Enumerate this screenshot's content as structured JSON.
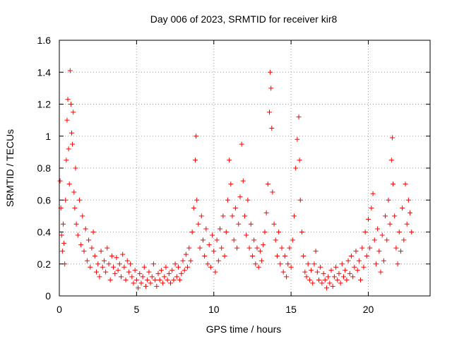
{
  "chart_data": {
    "type": "scatter",
    "title": "Day 006 of 2023, SRMTID for receiver kir8",
    "xlabel": "GPS time / hours",
    "ylabel": "SRMTID / TECUs",
    "xlim": [
      0,
      24
    ],
    "ylim": [
      0,
      1.6
    ],
    "xticks": [
      0,
      5,
      10,
      15,
      20
    ],
    "xtick_labels": [
      "0",
      "5",
      "10",
      "15",
      "20"
    ],
    "yticks": [
      0,
      0.2,
      0.4,
      0.6,
      0.8,
      1.0,
      1.2,
      1.4,
      1.6
    ],
    "ytick_labels": [
      "0",
      "0.2",
      "0.4",
      "0.6",
      "0.8",
      "1",
      "1.2",
      "1.4",
      "1.6"
    ],
    "grid": true,
    "marker": "plus",
    "series": [
      {
        "name": "SRMTID",
        "color": "#ff0000",
        "points": [
          [
            0.05,
            0.72
          ],
          [
            0.1,
            0.55
          ],
          [
            0.15,
            0.38
          ],
          [
            0.2,
            0.28
          ],
          [
            0.25,
            0.45
          ],
          [
            0.3,
            0.33
          ],
          [
            0.35,
            0.2
          ],
          [
            0.4,
            0.6
          ],
          [
            0.45,
            0.85
          ],
          [
            0.5,
            1.1
          ],
          [
            0.55,
            1.23
          ],
          [
            0.6,
            0.92
          ],
          [
            0.65,
            0.7
          ],
          [
            0.7,
            1.41
          ],
          [
            0.75,
            1.2
          ],
          [
            0.8,
            1.02
          ],
          [
            0.85,
            0.95
          ],
          [
            0.9,
            1.15
          ],
          [
            0.95,
            0.65
          ],
          [
            1.0,
            0.55
          ],
          [
            1.05,
            0.8
          ],
          [
            1.1,
            0.45
          ],
          [
            1.2,
            0.38
          ],
          [
            1.3,
            0.6
          ],
          [
            1.4,
            0.32
          ],
          [
            1.5,
            0.5
          ],
          [
            1.6,
            0.28
          ],
          [
            1.7,
            0.42
          ],
          [
            1.8,
            0.22
          ],
          [
            1.9,
            0.35
          ],
          [
            2.0,
            0.18
          ],
          [
            2.1,
            0.3
          ],
          [
            2.2,
            0.4
          ],
          [
            2.3,
            0.25
          ],
          [
            2.4,
            0.15
          ],
          [
            2.5,
            0.2
          ],
          [
            2.6,
            0.12
          ],
          [
            2.7,
            0.28
          ],
          [
            2.8,
            0.18
          ],
          [
            2.9,
            0.22
          ],
          [
            3.0,
            0.15
          ],
          [
            3.1,
            0.3
          ],
          [
            3.2,
            0.2
          ],
          [
            3.3,
            0.1
          ],
          [
            3.4,
            0.25
          ],
          [
            3.5,
            0.18
          ],
          [
            3.6,
            0.14
          ],
          [
            3.7,
            0.24
          ],
          [
            3.8,
            0.16
          ],
          [
            3.9,
            0.2
          ],
          [
            4.0,
            0.12
          ],
          [
            4.1,
            0.26
          ],
          [
            4.2,
            0.18
          ],
          [
            4.3,
            0.1
          ],
          [
            4.4,
            0.22
          ],
          [
            4.5,
            0.15
          ],
          [
            4.6,
            0.2
          ],
          [
            4.7,
            0.12
          ],
          [
            4.8,
            0.08
          ],
          [
            4.9,
            0.16
          ],
          [
            5.0,
            0.1
          ],
          [
            5.1,
            0.05
          ],
          [
            5.2,
            0.14
          ],
          [
            5.3,
            0.08
          ],
          [
            5.4,
            0.12
          ],
          [
            5.5,
            0.18
          ],
          [
            5.6,
            0.06
          ],
          [
            5.7,
            0.1
          ],
          [
            5.8,
            0.15
          ],
          [
            5.9,
            0.08
          ],
          [
            6.0,
            0.12
          ],
          [
            6.1,
            0.2
          ],
          [
            6.2,
            0.1
          ],
          [
            6.3,
            0.06
          ],
          [
            6.4,
            0.14
          ],
          [
            6.5,
            0.1
          ],
          [
            6.6,
            0.16
          ],
          [
            6.7,
            0.08
          ],
          [
            6.8,
            0.12
          ],
          [
            6.9,
            0.18
          ],
          [
            7.0,
            0.1
          ],
          [
            7.1,
            0.14
          ],
          [
            7.2,
            0.08
          ],
          [
            7.3,
            0.16
          ],
          [
            7.4,
            0.1
          ],
          [
            7.5,
            0.2
          ],
          [
            7.6,
            0.12
          ],
          [
            7.7,
            0.18
          ],
          [
            7.8,
            0.1
          ],
          [
            7.9,
            0.14
          ],
          [
            8.0,
            0.22
          ],
          [
            8.1,
            0.16
          ],
          [
            8.2,
            0.26
          ],
          [
            8.3,
            0.18
          ],
          [
            8.4,
            0.3
          ],
          [
            8.5,
            0.22
          ],
          [
            8.6,
            0.4
          ],
          [
            8.7,
            0.55
          ],
          [
            8.8,
            0.85
          ],
          [
            8.85,
            1.0
          ],
          [
            8.9,
            0.6
          ],
          [
            9.0,
            0.45
          ],
          [
            9.1,
            0.3
          ],
          [
            9.2,
            0.5
          ],
          [
            9.3,
            0.35
          ],
          [
            9.4,
            0.25
          ],
          [
            9.5,
            0.42
          ],
          [
            9.6,
            0.2
          ],
          [
            9.7,
            0.32
          ],
          [
            9.8,
            0.18
          ],
          [
            9.9,
            0.38
          ],
          [
            10.0,
            0.28
          ],
          [
            10.1,
            0.15
          ],
          [
            10.2,
            0.35
          ],
          [
            10.3,
            0.22
          ],
          [
            10.4,
            0.42
          ],
          [
            10.5,
            0.3
          ],
          [
            10.6,
            0.5
          ],
          [
            10.7,
            0.25
          ],
          [
            10.8,
            0.4
          ],
          [
            10.9,
            0.6
          ],
          [
            11.0,
            0.85
          ],
          [
            11.1,
            0.7
          ],
          [
            11.2,
            0.5
          ],
          [
            11.3,
            0.35
          ],
          [
            11.4,
            0.55
          ],
          [
            11.5,
            0.3
          ],
          [
            11.6,
            0.45
          ],
          [
            11.7,
            0.62
          ],
          [
            11.8,
            0.95
          ],
          [
            11.9,
            0.72
          ],
          [
            12.0,
            0.5
          ],
          [
            12.1,
            0.38
          ],
          [
            12.2,
            0.6
          ],
          [
            12.3,
            0.3
          ],
          [
            12.4,
            0.45
          ],
          [
            12.5,
            0.25
          ],
          [
            12.6,
            0.35
          ],
          [
            12.7,
            0.2
          ],
          [
            12.8,
            0.3
          ],
          [
            12.9,
            0.18
          ],
          [
            13.0,
            0.28
          ],
          [
            13.1,
            0.22
          ],
          [
            13.2,
            0.32
          ],
          [
            13.3,
            0.4
          ],
          [
            13.4,
            0.52
          ],
          [
            13.5,
            0.7
          ],
          [
            13.6,
            1.15
          ],
          [
            13.65,
            1.4
          ],
          [
            13.7,
            1.3
          ],
          [
            13.75,
            1.05
          ],
          [
            13.8,
            0.65
          ],
          [
            13.9,
            0.45
          ],
          [
            14.0,
            0.35
          ],
          [
            14.1,
            0.25
          ],
          [
            14.2,
            0.4
          ],
          [
            14.3,
            0.2
          ],
          [
            14.4,
            0.3
          ],
          [
            14.5,
            0.15
          ],
          [
            14.6,
            0.25
          ],
          [
            14.7,
            0.12
          ],
          [
            14.8,
            0.2
          ],
          [
            14.9,
            0.3
          ],
          [
            15.0,
            0.18
          ],
          [
            15.1,
            0.35
          ],
          [
            15.2,
            0.5
          ],
          [
            15.3,
            0.8
          ],
          [
            15.4,
            0.98
          ],
          [
            15.5,
            1.12
          ],
          [
            15.55,
            0.85
          ],
          [
            15.6,
            0.6
          ],
          [
            15.7,
            0.4
          ],
          [
            15.8,
            0.25
          ],
          [
            15.9,
            0.15
          ],
          [
            16.0,
            0.12
          ],
          [
            16.1,
            0.2
          ],
          [
            16.2,
            0.1
          ],
          [
            16.3,
            0.16
          ],
          [
            16.4,
            0.08
          ],
          [
            16.5,
            0.2
          ],
          [
            16.6,
            0.28
          ],
          [
            16.7,
            0.15
          ],
          [
            16.8,
            0.1
          ],
          [
            16.9,
            0.18
          ],
          [
            17.0,
            0.08
          ],
          [
            17.1,
            0.14
          ],
          [
            17.2,
            0.1
          ],
          [
            17.3,
            0.05
          ],
          [
            17.4,
            0.12
          ],
          [
            17.5,
            0.08
          ],
          [
            17.6,
            0.16
          ],
          [
            17.7,
            0.06
          ],
          [
            17.8,
            0.12
          ],
          [
            17.9,
            0.18
          ],
          [
            18.0,
            0.1
          ],
          [
            18.1,
            0.14
          ],
          [
            18.2,
            0.08
          ],
          [
            18.3,
            0.2
          ],
          [
            18.4,
            0.12
          ],
          [
            18.5,
            0.16
          ],
          [
            18.6,
            0.1
          ],
          [
            18.7,
            0.22
          ],
          [
            18.8,
            0.14
          ],
          [
            18.9,
            0.25
          ],
          [
            19.0,
            0.12
          ],
          [
            19.1,
            0.18
          ],
          [
            19.2,
            0.28
          ],
          [
            19.3,
            0.16
          ],
          [
            19.4,
            0.22
          ],
          [
            19.5,
            0.1
          ],
          [
            19.6,
            0.3
          ],
          [
            19.7,
            0.18
          ],
          [
            19.8,
            0.4
          ],
          [
            19.9,
            0.25
          ],
          [
            20.0,
            0.48
          ],
          [
            20.1,
            0.3
          ],
          [
            20.2,
            0.55
          ],
          [
            20.3,
            0.64
          ],
          [
            20.4,
            0.35
          ],
          [
            20.5,
            0.2
          ],
          [
            20.6,
            0.42
          ],
          [
            20.7,
            0.28
          ],
          [
            20.8,
            0.15
          ],
          [
            20.9,
            0.38
          ],
          [
            21.0,
            0.22
          ],
          [
            21.1,
            0.5
          ],
          [
            21.2,
            0.35
          ],
          [
            21.3,
            0.6
          ],
          [
            21.4,
            0.45
          ],
          [
            21.5,
            0.85
          ],
          [
            21.55,
            0.99
          ],
          [
            21.6,
            0.7
          ],
          [
            21.7,
            0.5
          ],
          [
            21.8,
            0.3
          ],
          [
            21.9,
            0.2
          ],
          [
            22.0,
            0.4
          ],
          [
            22.1,
            0.28
          ],
          [
            22.2,
            0.55
          ],
          [
            22.3,
            0.35
          ],
          [
            22.4,
            0.7
          ],
          [
            22.5,
            0.45
          ],
          [
            22.6,
            0.6
          ],
          [
            22.7,
            0.52
          ],
          [
            22.8,
            0.4
          ]
        ]
      }
    ]
  }
}
